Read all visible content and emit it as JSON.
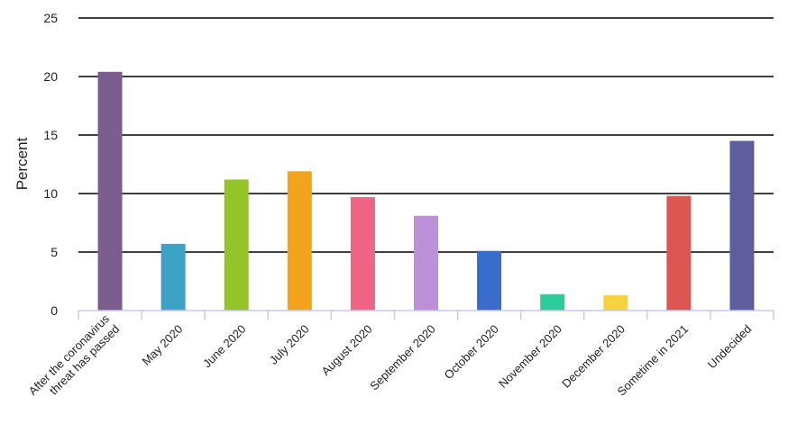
{
  "chart_data": {
    "type": "bar",
    "title": "",
    "xlabel": "",
    "ylabel": "Percent",
    "ylim": [
      0,
      25
    ],
    "yticks": [
      0,
      5,
      10,
      15,
      20,
      25
    ],
    "grid": true,
    "categories": [
      "After the coronavirus threat has passed",
      "May 2020",
      "June 2020",
      "July 2020",
      "August 2020",
      "September 2020",
      "October 2020",
      "November 2020",
      "December 2020",
      "Sometime in 2021",
      "Undecided"
    ],
    "category_lines": [
      [
        "After the coronavirus",
        "threat has passed"
      ],
      [
        "May 2020"
      ],
      [
        "June 2020"
      ],
      [
        "July 2020"
      ],
      [
        "August 2020"
      ],
      [
        "September 2020"
      ],
      [
        "October 2020"
      ],
      [
        "November 2020"
      ],
      [
        "December 2020"
      ],
      [
        "Sometime in 2021"
      ],
      [
        "Undecided"
      ]
    ],
    "values": [
      20.4,
      5.7,
      11.2,
      11.9,
      9.7,
      8.1,
      5.1,
      1.4,
      1.3,
      9.8,
      14.5
    ],
    "colors": [
      "#7b5e8f",
      "#3da3c6",
      "#95c42a",
      "#f4a31c",
      "#ef6384",
      "#bd8fd9",
      "#3a6ccc",
      "#2ccc9b",
      "#f5d33d",
      "#dd5752",
      "#5e5e9e"
    ]
  }
}
